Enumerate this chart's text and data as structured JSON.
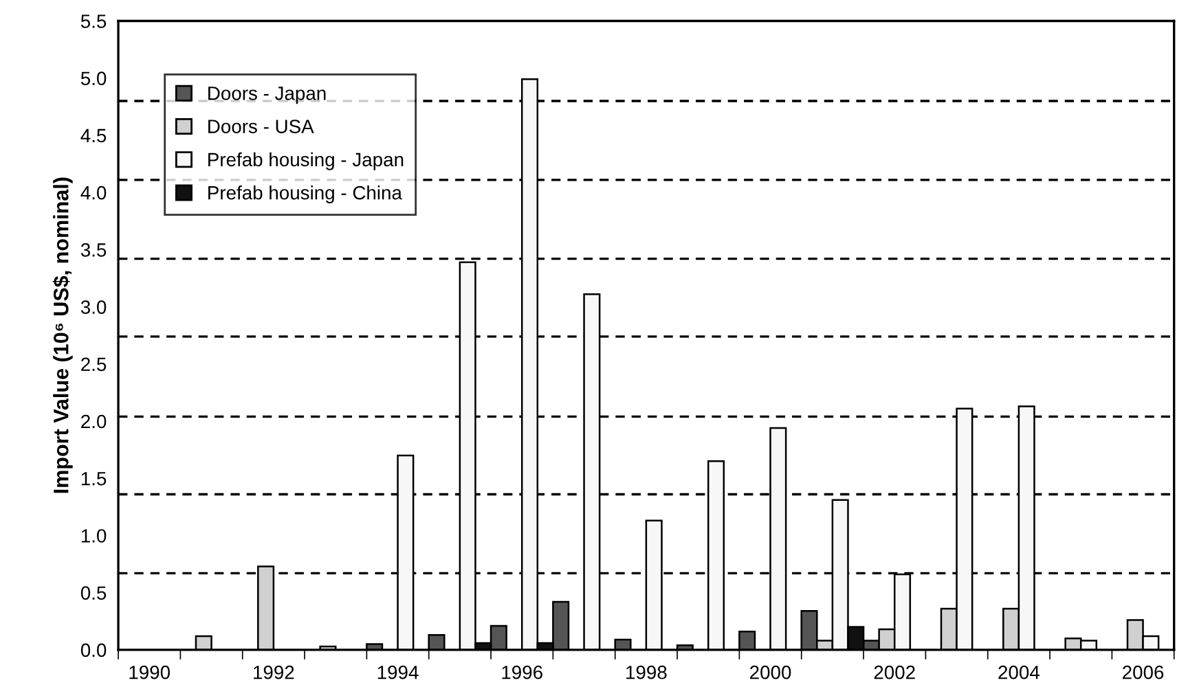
{
  "chart_data": {
    "type": "bar",
    "ylabel": "Import Value (10⁶ US$, nominal)",
    "categories": [
      "1990",
      null,
      "1992",
      null,
      "1994",
      null,
      "1996",
      null,
      "1998",
      null,
      "2000",
      null,
      "2002",
      null,
      "2004",
      null,
      "2006"
    ],
    "series": [
      {
        "name": "Doors - Japan",
        "color": "#555555",
        "values": [
          null,
          null,
          null,
          null,
          0.05,
          0.13,
          0.21,
          0.42,
          0.09,
          0.04,
          0.16,
          0.34,
          0.08,
          null,
          null,
          null,
          null
        ]
      },
      {
        "name": "Doors - USA",
        "color": "#d0d0d0",
        "values": [
          null,
          0.12,
          0.73,
          0.03,
          null,
          null,
          null,
          null,
          null,
          null,
          null,
          0.08,
          0.18,
          0.36,
          0.36,
          0.1,
          0.26
        ]
      },
      {
        "name": "Prefab housing - Japan",
        "color": "#f7f7f7",
        "values": [
          null,
          null,
          null,
          null,
          1.7,
          3.39,
          4.99,
          3.11,
          1.13,
          1.65,
          1.94,
          1.31,
          0.66,
          2.11,
          2.13,
          0.08,
          0.12
        ]
      },
      {
        "name": "Prefab housing - China",
        "color": "#111111",
        "values": [
          null,
          null,
          null,
          null,
          null,
          0.06,
          0.06,
          null,
          null,
          null,
          null,
          0.2,
          null,
          null,
          null,
          null,
          null
        ]
      }
    ],
    "ylim": [
      0,
      5.5
    ],
    "yticks": [
      {
        "value": 0,
        "label": "0.0"
      },
      0.5,
      {
        "value": 1,
        "label": "1.0"
      },
      1.5,
      {
        "value": 2,
        "label": "2.0"
      },
      2.5,
      {
        "value": 3,
        "label": "3.0"
      },
      3.5,
      {
        "value": 4,
        "label": "4.0"
      },
      4.5,
      {
        "value": 5,
        "label": "5.0"
      },
      5.5
    ],
    "ref_lines": [
      {
        "axis": "y",
        "value": 0.67,
        "color": "#000000",
        "line_style": "dashed"
      },
      {
        "axis": "y",
        "value": 1.36,
        "color": "#000000",
        "line_style": "dashed"
      },
      {
        "axis": "y",
        "value": 2.04,
        "color": "#000000",
        "line_style": "dashed"
      },
      {
        "axis": "y",
        "value": 2.74,
        "color": "#000000",
        "line_style": "dashed"
      },
      {
        "axis": "y",
        "value": 3.42,
        "color": "#000000",
        "line_style": "dashed"
      },
      {
        "axis": "y",
        "value": 4.11,
        "color": "#000000",
        "line_style": "dashed"
      },
      {
        "axis": "y",
        "value": 4.8,
        "color": "#000000",
        "line_style": "dashed"
      }
    ],
    "grid": false,
    "legend": "top left"
  }
}
